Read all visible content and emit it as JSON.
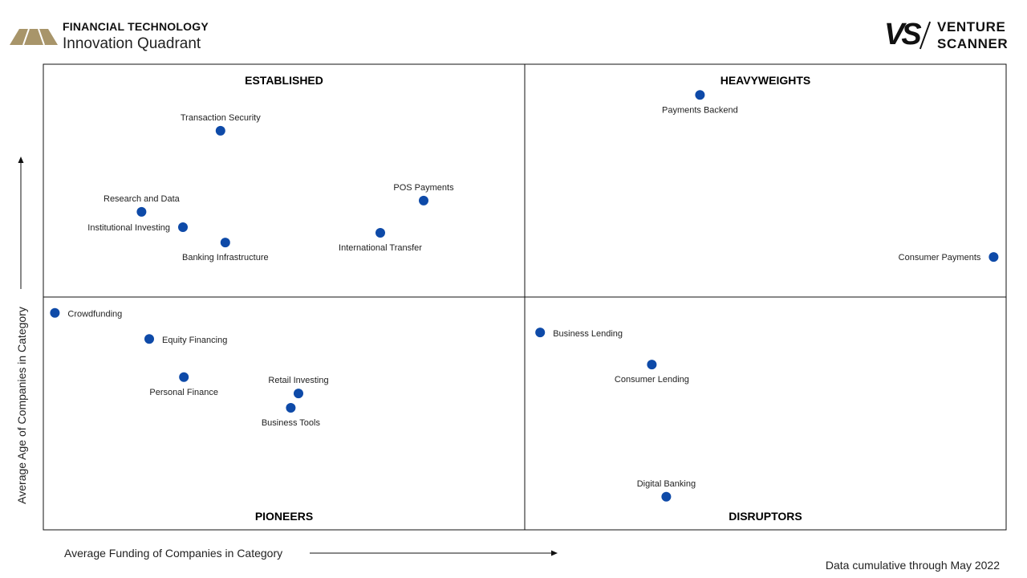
{
  "header": {
    "title": "FINANCIAL TECHNOLOGY",
    "subtitle": "Innovation Quadrant",
    "logo_color": "#a8956a"
  },
  "brand": {
    "mark": "VS",
    "line1": "VENTURE",
    "line2": "SCANNER"
  },
  "footnote": "Data cumulative through May 2022",
  "chart_data": {
    "type": "scatter",
    "title": "",
    "xlabel": "Average Funding of Companies in Category",
    "ylabel": "Average Age of Companies in Category",
    "xlim": [
      0,
      1
    ],
    "ylim": [
      0,
      1
    ],
    "dot_color": "#0e4aa8",
    "quadrants": {
      "top_left": "ESTABLISHED",
      "top_right": "HEAVYWEIGHTS",
      "bottom_left": "PIONEERS",
      "bottom_right": "DISRUPTORS"
    },
    "points": [
      {
        "label": "Transaction Security",
        "x": 0.184,
        "y": 0.857,
        "label_pos": "above"
      },
      {
        "label": "Research and Data",
        "x": 0.102,
        "y": 0.683,
        "label_pos": "above"
      },
      {
        "label": "Institutional Investing",
        "x": 0.145,
        "y": 0.65,
        "label_pos": "left"
      },
      {
        "label": "Banking Infrastructure",
        "x": 0.189,
        "y": 0.617,
        "label_pos": "below"
      },
      {
        "label": "POS Payments",
        "x": 0.395,
        "y": 0.707,
        "label_pos": "above"
      },
      {
        "label": "International Transfer",
        "x": 0.35,
        "y": 0.638,
        "label_pos": "below"
      },
      {
        "label": "Payments Backend",
        "x": 0.682,
        "y": 0.934,
        "label_pos": "below"
      },
      {
        "label": "Consumer Payments",
        "x": 0.987,
        "y": 0.586,
        "label_pos": "left"
      },
      {
        "label": "Crowdfunding",
        "x": 0.012,
        "y": 0.466,
        "label_pos": "right"
      },
      {
        "label": "Equity Financing",
        "x": 0.11,
        "y": 0.41,
        "label_pos": "right"
      },
      {
        "label": "Personal Finance",
        "x": 0.146,
        "y": 0.328,
        "label_pos": "below"
      },
      {
        "label": "Retail Investing",
        "x": 0.265,
        "y": 0.293,
        "label_pos": "above"
      },
      {
        "label": "Business Tools",
        "x": 0.257,
        "y": 0.262,
        "label_pos": "below"
      },
      {
        "label": "Business Lending",
        "x": 0.516,
        "y": 0.424,
        "label_pos": "right"
      },
      {
        "label": "Consumer Lending",
        "x": 0.632,
        "y": 0.355,
        "label_pos": "below"
      },
      {
        "label": "Digital Banking",
        "x": 0.647,
        "y": 0.071,
        "label_pos": "above"
      }
    ]
  }
}
